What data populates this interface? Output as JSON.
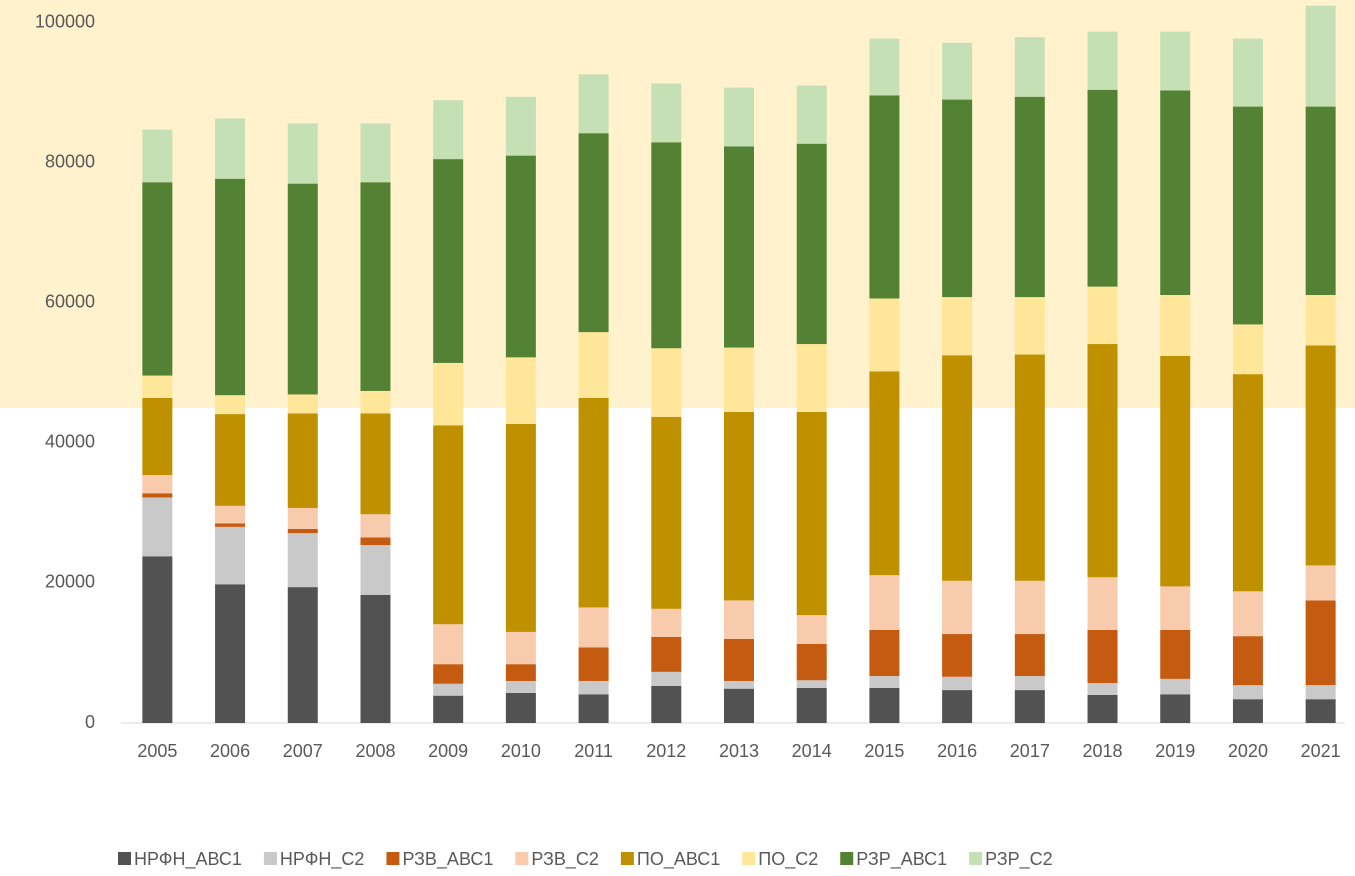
{
  "chart_data": {
    "type": "stacked_bar",
    "categories": [
      "2005",
      "2006",
      "2007",
      "2008",
      "2009",
      "2010",
      "2011",
      "2012",
      "2013",
      "2014",
      "2015",
      "2016",
      "2017",
      "2018",
      "2019",
      "2020",
      "2021"
    ],
    "series": [
      {
        "name": "НРФН_АВС1",
        "color": "#525252",
        "values": [
          23800,
          19800,
          19400,
          18300,
          3900,
          4300,
          4100,
          5300,
          4900,
          5000,
          5000,
          4700,
          4700,
          4000,
          4100,
          3400,
          3400
        ]
      },
      {
        "name": "НРФН_С2",
        "color": "#c9c9c9",
        "values": [
          8400,
          8200,
          7700,
          7100,
          1700,
          1700,
          1900,
          2000,
          1100,
          1100,
          1700,
          1900,
          2000,
          1700,
          2200,
          2000,
          2000
        ]
      },
      {
        "name": "РЗВ_АВС1",
        "color": "#c55a11",
        "values": [
          600,
          500,
          600,
          1100,
          2800,
          2400,
          4800,
          5000,
          6000,
          5200,
          6600,
          6100,
          6000,
          7600,
          7000,
          7000,
          12100
        ]
      },
      {
        "name": "РЗВ_С2",
        "color": "#f8cbad",
        "values": [
          2600,
          2500,
          3000,
          3300,
          5700,
          4600,
          5700,
          4000,
          5500,
          4100,
          7800,
          7600,
          7600,
          7500,
          6200,
          6400,
          5000
        ]
      },
      {
        "name": "ПО_АВС1",
        "color": "#bf9000",
        "values": [
          11000,
          13100,
          13500,
          14400,
          28400,
          29700,
          29900,
          27400,
          26900,
          29000,
          29100,
          32200,
          32300,
          33300,
          32900,
          31000,
          31400
        ]
      },
      {
        "name": "ПО_С2",
        "color": "#ffe699",
        "values": [
          3200,
          2700,
          2700,
          3200,
          8900,
          9500,
          9400,
          9800,
          9200,
          9700,
          10400,
          8300,
          8200,
          8200,
          8700,
          7100,
          7200
        ]
      },
      {
        "name": "РЗР_АВС1",
        "color": "#548235",
        "values": [
          27600,
          30900,
          30100,
          29800,
          29100,
          28800,
          28400,
          29400,
          28700,
          28600,
          29000,
          28200,
          28600,
          28100,
          29200,
          31100,
          26900
        ]
      },
      {
        "name": "РЗР_С2",
        "color": "#c5e0b4",
        "values": [
          7500,
          8600,
          8600,
          8400,
          8400,
          8400,
          8400,
          8400,
          8400,
          8300,
          8100,
          8100,
          8500,
          8300,
          8400,
          9700,
          14400
        ]
      }
    ],
    "ylim": [
      0,
      102500
    ],
    "yticks": [
      0,
      20000,
      40000,
      60000,
      80000,
      100000
    ],
    "legend": "bottom"
  }
}
